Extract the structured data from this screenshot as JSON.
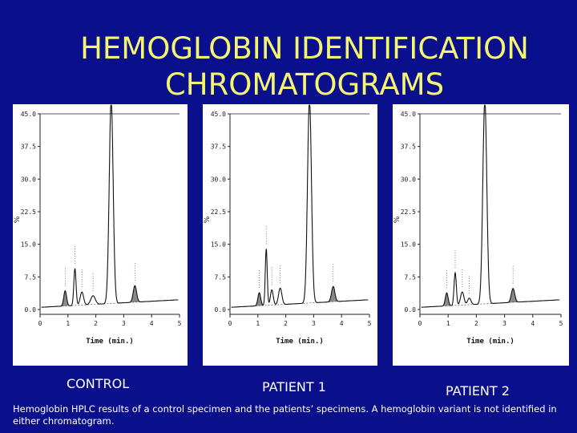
{
  "title_line1": "HEMOGLOBIN IDENTIFICATION",
  "title_line2": "CHROMATOGRAMS",
  "captions": [
    "CONTROL",
    "PATIENT 1",
    "PATIENT 2"
  ],
  "footnote": "Hemoglobin HPLC results of a control specimen and the patients’ specimens.  A hemoglobin variant is not identified in either chromatogram.",
  "colors": {
    "background": "#0a0f8c",
    "title": "#f5f570",
    "caption": "#ffffff",
    "trace": "#111111",
    "shaded_peak": "#8a8a8a"
  },
  "chart_data": [
    {
      "type": "line",
      "panel": "CONTROL",
      "xlabel": "Time (min.)",
      "ylabel": "%",
      "xlim": [
        0,
        5
      ],
      "ylim": [
        0,
        45
      ],
      "x_ticks": [
        "0",
        "1",
        "2",
        "3",
        "4",
        "5"
      ],
      "y_ticks": [
        "0.0",
        "7.5",
        "15.0",
        "22.5",
        "30.0",
        "37.5",
        "45.0"
      ],
      "peaks": [
        {
          "time": 0.9,
          "height": 3.5,
          "width": 0.05,
          "shaded": true
        },
        {
          "time": 1.25,
          "height": 8.5,
          "width": 0.04,
          "shaded": false
        },
        {
          "time": 1.5,
          "height": 3.0,
          "width": 0.06,
          "shaded": false
        },
        {
          "time": 1.9,
          "height": 2.0,
          "width": 0.08,
          "shaded": false
        },
        {
          "time": 2.55,
          "height": 47,
          "width": 0.07,
          "shaded": false
        },
        {
          "time": 3.4,
          "height": 3.8,
          "width": 0.06,
          "shaded": true
        }
      ]
    },
    {
      "type": "line",
      "panel": "PATIENT 1",
      "xlabel": "Time (min.)",
      "ylabel": "%",
      "xlim": [
        0,
        5
      ],
      "ylim": [
        0,
        45
      ],
      "x_ticks": [
        "0",
        "1",
        "2",
        "3",
        "4",
        "5"
      ],
      "y_ticks": [
        "0.0",
        "7.5",
        "15.0",
        "22.5",
        "30.0",
        "37.5",
        "45.0"
      ],
      "peaks": [
        {
          "time": 1.05,
          "height": 3.0,
          "width": 0.05,
          "shaded": true
        },
        {
          "time": 1.3,
          "height": 13.0,
          "width": 0.035,
          "shaded": false
        },
        {
          "time": 1.5,
          "height": 3.5,
          "width": 0.05,
          "shaded": false
        },
        {
          "time": 1.8,
          "height": 3.8,
          "width": 0.06,
          "shaded": false
        },
        {
          "time": 2.85,
          "height": 47,
          "width": 0.07,
          "shaded": false
        },
        {
          "time": 3.7,
          "height": 3.5,
          "width": 0.06,
          "shaded": true
        }
      ]
    },
    {
      "type": "line",
      "panel": "PATIENT 2",
      "xlabel": "Time (min.)",
      "ylabel": "%",
      "xlim": [
        0,
        5
      ],
      "ylim": [
        0,
        45
      ],
      "x_ticks": [
        "0",
        "1",
        "2",
        "3",
        "4",
        "5"
      ],
      "y_ticks": [
        "0.0",
        "7.5",
        "15.0",
        "22.5",
        "30.0",
        "37.5",
        "45.0"
      ],
      "peaks": [
        {
          "time": 0.95,
          "height": 3.0,
          "width": 0.05,
          "shaded": true
        },
        {
          "time": 1.25,
          "height": 7.5,
          "width": 0.04,
          "shaded": false
        },
        {
          "time": 1.5,
          "height": 3.0,
          "width": 0.06,
          "shaded": false
        },
        {
          "time": 1.75,
          "height": 1.5,
          "width": 0.06,
          "shaded": false
        },
        {
          "time": 2.3,
          "height": 47,
          "width": 0.07,
          "shaded": false
        },
        {
          "time": 3.3,
          "height": 3.2,
          "width": 0.06,
          "shaded": true
        }
      ]
    }
  ]
}
